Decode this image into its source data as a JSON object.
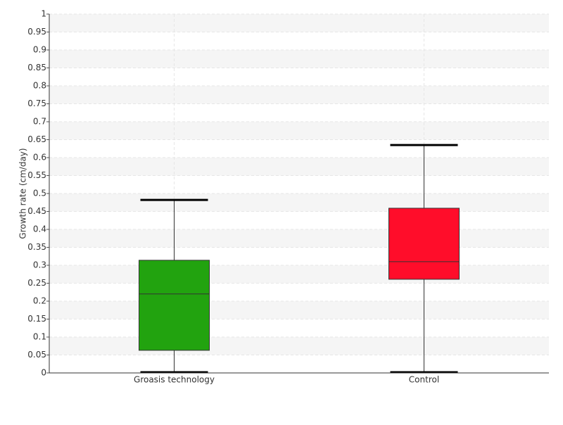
{
  "chart_data": {
    "type": "box",
    "y_label": "Growth rate (cm/day)",
    "categories": [
      "Groasis technology",
      "Control"
    ],
    "min": [
      0,
      0
    ],
    "q1": [
      0.063,
      0.261
    ],
    "median": [
      0.22,
      0.31
    ],
    "q3": [
      0.314,
      0.459
    ],
    "max": [
      0.482,
      0.635
    ],
    "colors": [
      "#22a30f",
      "#ff0d2a"
    ],
    "ylim": [
      0,
      1
    ],
    "yticks": [
      0,
      0.05,
      0.1,
      0.15,
      0.2,
      0.25,
      0.3,
      0.35,
      0.4,
      0.45,
      0.5,
      0.55,
      0.6,
      0.65,
      0.7,
      0.75,
      0.8,
      0.85,
      0.9,
      0.95,
      1
    ],
    "grid": true
  }
}
